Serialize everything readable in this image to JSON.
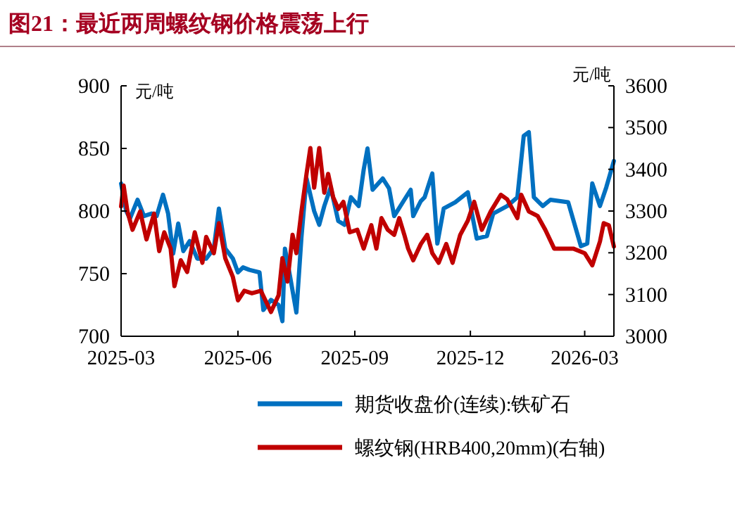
{
  "chart_data": {
    "type": "line",
    "title": "图21：最近两周螺纹钢价格震荡上行",
    "ylabel": "元/吨",
    "y2label": "元/吨",
    "xlim": [
      "2025-03-01",
      "2026-03-24"
    ],
    "xticks": [
      {
        "value": "2025-03-01",
        "label": "2025-03"
      },
      {
        "value": "2025-06-01",
        "label": "2025-06"
      },
      {
        "value": "2025-09-01",
        "label": "2025-09"
      },
      {
        "value": "2025-12-01",
        "label": "2025-12"
      },
      {
        "value": "2026-03-01",
        "label": "2026-03"
      }
    ],
    "ylim": [
      700,
      900
    ],
    "yticks": [
      700,
      750,
      800,
      850,
      900
    ],
    "y2lim": [
      3000,
      3600
    ],
    "y2ticks": [
      3000,
      3100,
      3200,
      3300,
      3400,
      3500,
      3600
    ],
    "legend": "bottom",
    "series": [
      {
        "name": "期货收盘价(连续):铁矿石",
        "color": "#0070c0",
        "x": [
          "2025-03-01",
          "2025-03-05",
          "2025-03-08",
          "2025-03-14",
          "2025-03-19",
          "2025-03-25",
          "2025-03-29",
          "2025-04-03",
          "2025-04-07",
          "2025-04-11",
          "2025-04-15",
          "2025-04-19",
          "2025-04-24",
          "2025-04-30",
          "2025-05-07",
          "2025-05-13",
          "2025-05-17",
          "2025-05-22",
          "2025-05-28",
          "2025-06-01",
          "2025-06-05",
          "2025-06-10",
          "2025-06-18",
          "2025-06-21",
          "2025-06-27",
          "2025-07-03",
          "2025-07-06",
          "2025-07-08",
          "2025-07-12",
          "2025-07-17",
          "2025-07-21",
          "2025-07-25",
          "2025-07-31",
          "2025-08-04",
          "2025-08-08",
          "2025-08-13",
          "2025-08-19",
          "2025-08-24",
          "2025-08-29",
          "2025-09-04",
          "2025-09-08",
          "2025-09-11",
          "2025-09-15",
          "2025-09-23",
          "2025-09-28",
          "2025-10-02",
          "2025-10-10",
          "2025-10-15",
          "2025-10-17",
          "2025-10-23",
          "2025-10-26",
          "2025-11-01",
          "2025-11-05",
          "2025-11-10",
          "2025-11-19",
          "2025-11-29",
          "2025-12-06",
          "2025-12-14",
          "2025-12-19",
          "2025-12-30",
          "2026-01-07",
          "2026-01-12",
          "2026-01-16",
          "2026-01-20",
          "2026-01-27",
          "2026-02-02",
          "2026-02-16",
          "2026-02-26",
          "2026-03-03",
          "2026-03-07",
          "2026-03-13",
          "2026-03-18",
          "2026-03-24"
        ],
        "values": [
          822,
          800,
          794,
          809,
          796,
          798,
          796,
          813,
          798,
          766,
          790,
          768,
          776,
          762,
          762,
          770,
          802,
          770,
          762,
          751,
          755,
          753,
          751,
          721,
          729,
          725,
          712,
          770,
          748,
          719,
          779,
          826,
          800,
          789,
          804,
          819,
          792,
          789,
          811,
          804,
          833,
          850,
          817,
          826,
          818,
          796,
          809,
          817,
          796,
          808,
          811,
          830,
          774,
          802,
          807,
          815,
          778,
          780,
          798,
          804,
          811,
          860,
          863,
          811,
          804,
          809,
          807,
          772,
          774,
          822,
          804,
          819,
          840
        ]
      },
      {
        "name": "螺纹钢(HRB400,20mm)(右轴)",
        "color": "#c00000",
        "axis": "y2",
        "x": [
          "2025-03-01",
          "2025-03-03",
          "2025-03-06",
          "2025-03-10",
          "2025-03-16",
          "2025-03-21",
          "2025-03-27",
          "2025-03-31",
          "2025-04-04",
          "2025-04-09",
          "2025-04-12",
          "2025-04-17",
          "2025-04-22",
          "2025-04-28",
          "2025-05-04",
          "2025-05-07",
          "2025-05-13",
          "2025-05-17",
          "2025-05-22",
          "2025-05-28",
          "2025-06-01",
          "2025-06-06",
          "2025-06-12",
          "2025-06-19",
          "2025-06-27",
          "2025-07-03",
          "2025-07-06",
          "2025-07-10",
          "2025-07-14",
          "2025-07-17",
          "2025-07-21",
          "2025-07-25",
          "2025-07-28",
          "2025-07-31",
          "2025-08-04",
          "2025-08-08",
          "2025-08-11",
          "2025-08-15",
          "2025-08-19",
          "2025-08-23",
          "2025-08-28",
          "2025-09-03",
          "2025-09-08",
          "2025-09-14",
          "2025-09-18",
          "2025-09-22",
          "2025-09-27",
          "2025-10-02",
          "2025-10-06",
          "2025-10-10",
          "2025-10-13",
          "2025-10-17",
          "2025-10-23",
          "2025-10-28",
          "2025-11-01",
          "2025-11-06",
          "2025-11-12",
          "2025-11-17",
          "2025-11-23",
          "2025-11-29",
          "2025-12-04",
          "2025-12-10",
          "2025-12-17",
          "2025-12-25",
          "2025-12-30",
          "2026-01-07",
          "2026-01-10",
          "2026-01-16",
          "2026-01-23",
          "2026-01-29",
          "2026-02-05",
          "2026-02-20",
          "2026-03-01",
          "2026-03-07",
          "2026-03-13",
          "2026-03-16",
          "2026-03-20",
          "2026-03-24"
        ],
        "values": [
          3311,
          3361,
          3299,
          3255,
          3299,
          3232,
          3294,
          3204,
          3249,
          3210,
          3120,
          3182,
          3154,
          3249,
          3176,
          3238,
          3199,
          3271,
          3187,
          3142,
          3086,
          3109,
          3103,
          3109,
          3058,
          3098,
          3187,
          3131,
          3243,
          3199,
          3299,
          3389,
          3451,
          3356,
          3451,
          3344,
          3389,
          3333,
          3305,
          3322,
          3249,
          3255,
          3210,
          3266,
          3210,
          3283,
          3255,
          3243,
          3283,
          3243,
          3210,
          3182,
          3221,
          3243,
          3199,
          3176,
          3221,
          3176,
          3243,
          3277,
          3322,
          3255,
          3299,
          3339,
          3328,
          3283,
          3339,
          3299,
          3288,
          3255,
          3210,
          3210,
          3199,
          3170,
          3227,
          3271,
          3266,
          3215
        ]
      }
    ]
  }
}
